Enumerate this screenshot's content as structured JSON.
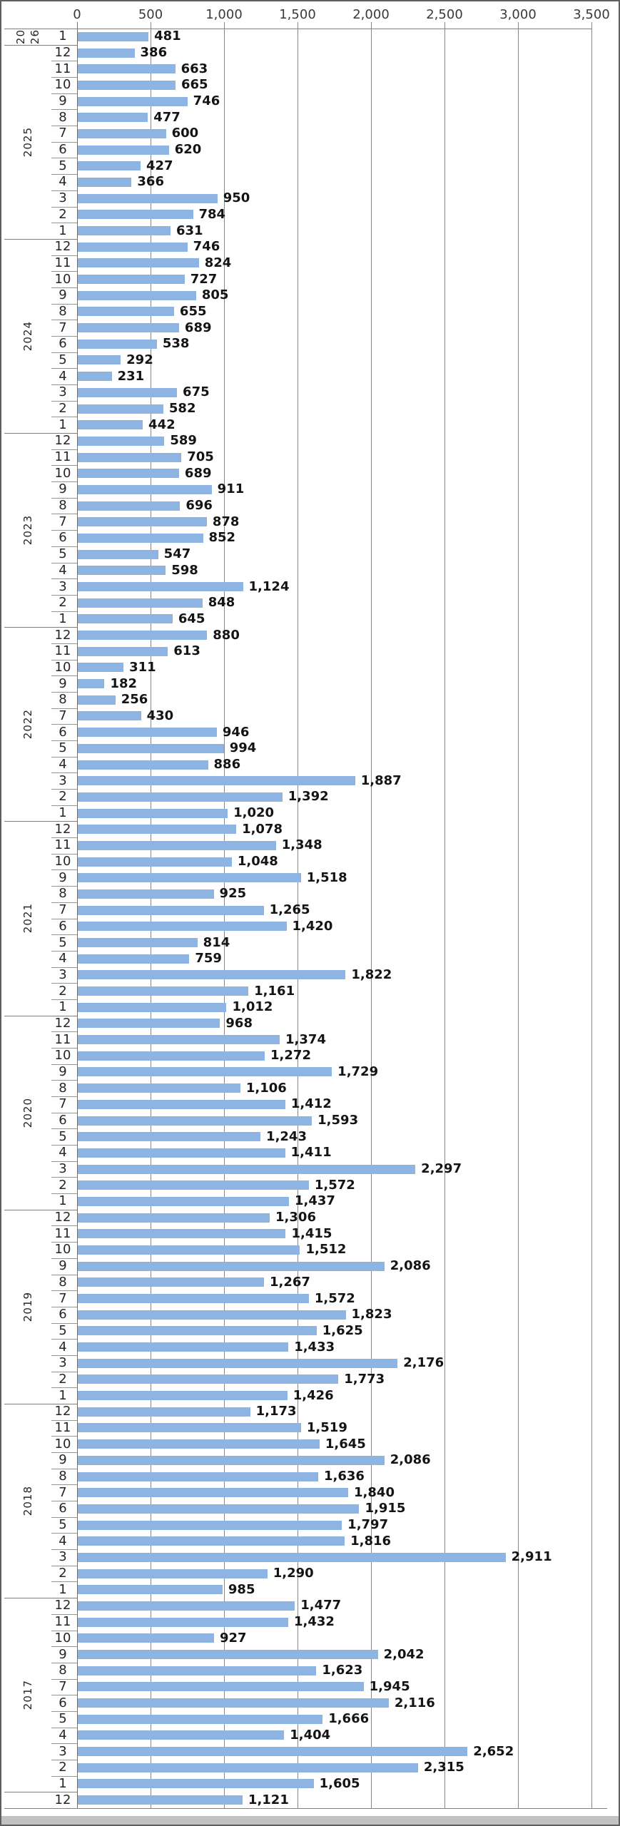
{
  "chart_data": {
    "type": "bar",
    "orientation": "horizontal",
    "title": "",
    "xlabel": "",
    "ylabel": "",
    "xlim": [
      0,
      3500
    ],
    "tick_interval": 500,
    "x_ticks": [
      "0",
      "500",
      "1,000",
      "1,500",
      "2,000",
      "2,500",
      "3,000",
      "3,500"
    ],
    "grid": true,
    "bar_color": "#8DB4E2",
    "grid_color": "#878787",
    "value_label_color": "#141414",
    "groups": [
      {
        "year": "2026",
        "year_segments": [
          "20",
          "26"
        ],
        "months": [
          "1"
        ],
        "values": [
          481
        ]
      },
      {
        "year": "2025",
        "year_segments": [
          "2025"
        ],
        "months": [
          "12",
          "11",
          "10",
          "9",
          "8",
          "7",
          "6",
          "5",
          "4",
          "3",
          "2",
          "1"
        ],
        "values": [
          386,
          663,
          665,
          746,
          477,
          600,
          620,
          427,
          366,
          950,
          784,
          631
        ]
      },
      {
        "year": "2024",
        "year_segments": [
          "2024"
        ],
        "months": [
          "12",
          "11",
          "10",
          "9",
          "8",
          "7",
          "6",
          "5",
          "4",
          "3",
          "2",
          "1"
        ],
        "values": [
          746,
          824,
          727,
          805,
          655,
          689,
          538,
          292,
          231,
          675,
          582,
          442
        ]
      },
      {
        "year": "2023",
        "year_segments": [
          "2023"
        ],
        "months": [
          "12",
          "11",
          "10",
          "9",
          "8",
          "7",
          "6",
          "5",
          "4",
          "3",
          "2",
          "1"
        ],
        "values": [
          589,
          705,
          689,
          911,
          696,
          878,
          852,
          547,
          598,
          1124,
          848,
          645
        ]
      },
      {
        "year": "2022",
        "year_segments": [
          "2022"
        ],
        "months": [
          "12",
          "11",
          "10",
          "9",
          "8",
          "7",
          "6",
          "5",
          "4",
          "3",
          "2",
          "1"
        ],
        "values": [
          880,
          613,
          311,
          182,
          256,
          430,
          946,
          994,
          886,
          1887,
          1392,
          1020
        ]
      },
      {
        "year": "2021",
        "year_segments": [
          "2021"
        ],
        "months": [
          "12",
          "11",
          "10",
          "9",
          "8",
          "7",
          "6",
          "5",
          "4",
          "3",
          "2",
          "1"
        ],
        "values": [
          1078,
          1348,
          1048,
          1518,
          925,
          1265,
          1420,
          814,
          759,
          1822,
          1161,
          1012
        ]
      },
      {
        "year": "2020",
        "year_segments": [
          "2020"
        ],
        "months": [
          "12",
          "11",
          "10",
          "9",
          "8",
          "7",
          "6",
          "5",
          "4",
          "3",
          "2",
          "1"
        ],
        "values": [
          968,
          1374,
          1272,
          1729,
          1106,
          1412,
          1593,
          1243,
          1411,
          2297,
          1572,
          1437
        ]
      },
      {
        "year": "2019",
        "year_segments": [
          "2019"
        ],
        "months": [
          "12",
          "11",
          "10",
          "9",
          "8",
          "7",
          "6",
          "5",
          "4",
          "3",
          "2",
          "1"
        ],
        "values": [
          1306,
          1415,
          1512,
          2086,
          1267,
          1572,
          1823,
          1625,
          1433,
          2176,
          1773,
          1426
        ]
      },
      {
        "year": "2018",
        "year_segments": [
          "2018"
        ],
        "months": [
          "12",
          "11",
          "10",
          "9",
          "8",
          "7",
          "6",
          "5",
          "4",
          "3",
          "2",
          "1"
        ],
        "values": [
          1173,
          1519,
          1645,
          2086,
          1636,
          1840,
          1915,
          1797,
          1816,
          2911,
          1290,
          985
        ]
      },
      {
        "year": "2017",
        "year_segments": [
          "2017"
        ],
        "months": [
          "12",
          "11",
          "10",
          "9",
          "8",
          "7",
          "6",
          "5",
          "4",
          "3",
          "2",
          "1"
        ],
        "values": [
          1477,
          1432,
          927,
          2042,
          1623,
          1945,
          2116,
          1666,
          1404,
          2652,
          2315,
          1605
        ]
      },
      {
        "year": "",
        "year_segments": [],
        "months": [
          "12"
        ],
        "values": [
          1121
        ]
      }
    ]
  }
}
